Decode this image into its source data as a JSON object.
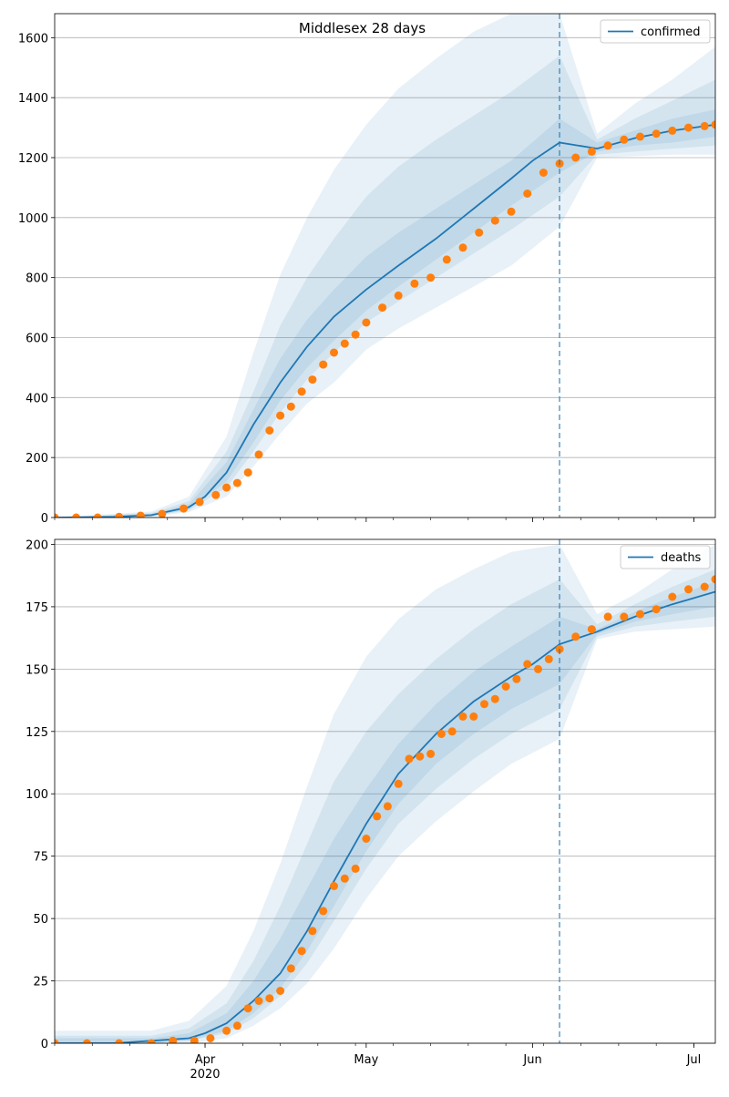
{
  "chart_data": [
    {
      "type": "line",
      "title": "Middlesex 28 days",
      "xlabel": "",
      "ylabel": "",
      "ylim": [
        0,
        1680
      ],
      "yticks": [
        0,
        200,
        400,
        600,
        800,
        1000,
        1200,
        1400,
        1600
      ],
      "xticks": [
        {
          "date": "2020-04-01",
          "label": "Apr"
        },
        {
          "date": "2020-05-01",
          "label": "May"
        },
        {
          "date": "2020-06-01",
          "label": "Jun"
        },
        {
          "date": "2020-07-01",
          "label": "Jul"
        }
      ],
      "xlim": [
        "2020-03-04",
        "2020-07-05"
      ],
      "year_label": "2020",
      "grid": "horizontal",
      "legend": "top-right",
      "legend_label": "confirmed",
      "forecast_start": "2020-06-06",
      "model_line": {
        "x": [
          "2020-03-04",
          "2020-03-15",
          "2020-03-22",
          "2020-03-29",
          "2020-04-01",
          "2020-04-05",
          "2020-04-10",
          "2020-04-15",
          "2020-04-20",
          "2020-04-25",
          "2020-05-01",
          "2020-05-07",
          "2020-05-14",
          "2020-05-21",
          "2020-05-28",
          "2020-06-01",
          "2020-06-06",
          "2020-06-13",
          "2020-06-20",
          "2020-06-27",
          "2020-07-05"
        ],
        "y": [
          0,
          2,
          8,
          35,
          70,
          150,
          310,
          450,
          570,
          670,
          760,
          840,
          930,
          1030,
          1130,
          1190,
          1250,
          1230,
          1265,
          1290,
          1310
        ]
      },
      "bands": [
        {
          "x": [
            "2020-03-04",
            "2020-03-22",
            "2020-03-29",
            "2020-04-05",
            "2020-04-10",
            "2020-04-15",
            "2020-04-20",
            "2020-04-25",
            "2020-05-01",
            "2020-05-07",
            "2020-05-14",
            "2020-05-21",
            "2020-05-28",
            "2020-06-06",
            "2020-06-13",
            "2020-06-20",
            "2020-06-27",
            "2020-07-05"
          ],
          "lower": [
            0,
            3,
            18,
            70,
            170,
            280,
            380,
            450,
            560,
            630,
            700,
            770,
            840,
            970,
            1200,
            1205,
            1210,
            1210
          ],
          "upper": [
            0,
            20,
            70,
            270,
            550,
            810,
            1000,
            1160,
            1310,
            1430,
            1530,
            1620,
            1680,
            1680,
            1280,
            1380,
            1460,
            1570
          ]
        },
        {
          "x": [
            "2020-03-04",
            "2020-03-22",
            "2020-03-29",
            "2020-04-05",
            "2020-04-10",
            "2020-04-15",
            "2020-04-20",
            "2020-04-25",
            "2020-05-01",
            "2020-05-07",
            "2020-05-14",
            "2020-05-21",
            "2020-05-28",
            "2020-06-06",
            "2020-06-13",
            "2020-06-20",
            "2020-06-27",
            "2020-07-05"
          ],
          "lower": [
            0,
            4,
            24,
            100,
            220,
            350,
            460,
            550,
            650,
            720,
            800,
            880,
            960,
            1070,
            1210,
            1220,
            1230,
            1240
          ],
          "upper": [
            0,
            15,
            55,
            220,
            420,
            640,
            800,
            930,
            1070,
            1170,
            1260,
            1340,
            1420,
            1540,
            1260,
            1330,
            1390,
            1460
          ]
        },
        {
          "x": [
            "2020-03-04",
            "2020-03-22",
            "2020-03-29",
            "2020-04-05",
            "2020-04-10",
            "2020-04-15",
            "2020-04-20",
            "2020-04-25",
            "2020-05-01",
            "2020-05-07",
            "2020-05-14",
            "2020-05-21",
            "2020-05-28",
            "2020-06-06",
            "2020-06-13",
            "2020-06-20",
            "2020-06-27",
            "2020-07-05"
          ],
          "lower": [
            0,
            5,
            28,
            120,
            250,
            390,
            500,
            590,
            690,
            770,
            860,
            950,
            1040,
            1150,
            1220,
            1240,
            1250,
            1270
          ],
          "upper": [
            0,
            12,
            45,
            185,
            360,
            530,
            660,
            760,
            870,
            950,
            1030,
            1110,
            1190,
            1330,
            1250,
            1290,
            1330,
            1360
          ]
        }
      ],
      "observed": {
        "x": [
          "2020-03-04",
          "2020-03-08",
          "2020-03-12",
          "2020-03-16",
          "2020-03-20",
          "2020-03-24",
          "2020-03-28",
          "2020-03-31",
          "2020-04-03",
          "2020-04-05",
          "2020-04-07",
          "2020-04-09",
          "2020-04-11",
          "2020-04-13",
          "2020-04-15",
          "2020-04-17",
          "2020-04-19",
          "2020-04-21",
          "2020-04-23",
          "2020-04-25",
          "2020-04-27",
          "2020-04-29",
          "2020-05-01",
          "2020-05-04",
          "2020-05-07",
          "2020-05-10",
          "2020-05-13",
          "2020-05-16",
          "2020-05-19",
          "2020-05-22",
          "2020-05-25",
          "2020-05-28",
          "2020-05-31",
          "2020-06-03",
          "2020-06-06",
          "2020-06-09",
          "2020-06-12",
          "2020-06-15",
          "2020-06-18",
          "2020-06-21",
          "2020-06-24",
          "2020-06-27",
          "2020-06-30",
          "2020-07-03",
          "2020-07-05"
        ],
        "y": [
          0,
          0,
          0,
          2,
          6,
          12,
          30,
          52,
          75,
          100,
          115,
          150,
          210,
          290,
          340,
          370,
          420,
          460,
          510,
          550,
          580,
          610,
          650,
          700,
          740,
          780,
          800,
          860,
          900,
          950,
          990,
          1020,
          1080,
          1150,
          1180,
          1200,
          1220,
          1240,
          1260,
          1270,
          1280,
          1290,
          1300,
          1305,
          1310
        ]
      }
    },
    {
      "type": "line",
      "title": "",
      "xlabel": "",
      "ylabel": "",
      "ylim": [
        0,
        202
      ],
      "yticks": [
        0,
        25,
        50,
        75,
        100,
        125,
        150,
        175,
        200
      ],
      "xticks": [
        {
          "date": "2020-04-01",
          "label": "Apr"
        },
        {
          "date": "2020-05-01",
          "label": "May"
        },
        {
          "date": "2020-06-01",
          "label": "Jun"
        },
        {
          "date": "2020-07-01",
          "label": "Jul"
        }
      ],
      "xlim": [
        "2020-03-04",
        "2020-07-05"
      ],
      "year_label": "2020",
      "grid": "horizontal",
      "legend": "top-right",
      "legend_label": "deaths",
      "forecast_start": "2020-06-06",
      "model_line": {
        "x": [
          "2020-03-04",
          "2020-03-15",
          "2020-03-22",
          "2020-03-29",
          "2020-04-01",
          "2020-04-05",
          "2020-04-10",
          "2020-04-15",
          "2020-04-20",
          "2020-04-25",
          "2020-05-01",
          "2020-05-07",
          "2020-05-14",
          "2020-05-21",
          "2020-05-28",
          "2020-06-01",
          "2020-06-06",
          "2020-06-13",
          "2020-06-20",
          "2020-06-27",
          "2020-07-05"
        ],
        "y": [
          0,
          0,
          1,
          2,
          4,
          8,
          17,
          28,
          45,
          65,
          88,
          108,
          124,
          137,
          147,
          152,
          160,
          165,
          171,
          176,
          181
        ]
      },
      "bands": [
        {
          "x": [
            "2020-03-04",
            "2020-03-22",
            "2020-03-29",
            "2020-04-05",
            "2020-04-10",
            "2020-04-15",
            "2020-04-20",
            "2020-04-25",
            "2020-05-01",
            "2020-05-07",
            "2020-05-14",
            "2020-05-21",
            "2020-05-28",
            "2020-06-06",
            "2020-06-13",
            "2020-06-20",
            "2020-06-27",
            "2020-07-05"
          ],
          "lower": [
            0,
            0,
            0,
            2,
            7,
            14,
            24,
            38,
            58,
            75,
            89,
            101,
            112,
            122,
            162,
            165,
            166,
            167
          ],
          "upper": [
            5,
            5,
            9,
            23,
            45,
            72,
            103,
            132,
            155,
            170,
            182,
            190,
            197,
            200,
            172,
            180,
            190,
            200
          ]
        },
        {
          "x": [
            "2020-03-04",
            "2020-03-22",
            "2020-03-29",
            "2020-04-05",
            "2020-04-10",
            "2020-04-15",
            "2020-04-20",
            "2020-04-25",
            "2020-05-01",
            "2020-05-07",
            "2020-05-14",
            "2020-05-21",
            "2020-05-28",
            "2020-06-06",
            "2020-06-13",
            "2020-06-20",
            "2020-06-27",
            "2020-07-05"
          ],
          "lower": [
            0,
            0,
            1,
            4,
            10,
            19,
            32,
            49,
            70,
            88,
            102,
            114,
            124,
            134,
            163,
            167,
            169,
            171
          ],
          "upper": [
            3,
            3,
            6,
            16,
            33,
            55,
            80,
            105,
            125,
            140,
            154,
            166,
            176,
            186,
            168,
            176,
            183,
            190
          ]
        },
        {
          "x": [
            "2020-03-04",
            "2020-03-22",
            "2020-03-29",
            "2020-04-05",
            "2020-04-10",
            "2020-04-15",
            "2020-04-20",
            "2020-04-25",
            "2020-05-01",
            "2020-05-07",
            "2020-05-14",
            "2020-05-21",
            "2020-05-28",
            "2020-06-06",
            "2020-06-13",
            "2020-06-20",
            "2020-06-27",
            "2020-07-05"
          ],
          "lower": [
            0,
            0,
            1,
            5,
            12,
            22,
            37,
            55,
            77,
            96,
            112,
            124,
            134,
            144,
            164,
            169,
            172,
            175
          ],
          "upper": [
            2,
            2,
            4,
            12,
            25,
            42,
            62,
            82,
            102,
            120,
            136,
            149,
            159,
            171,
            166,
            173,
            179,
            185
          ]
        }
      ],
      "observed": {
        "x": [
          "2020-03-04",
          "2020-03-10",
          "2020-03-16",
          "2020-03-22",
          "2020-03-26",
          "2020-03-30",
          "2020-04-02",
          "2020-04-05",
          "2020-04-07",
          "2020-04-09",
          "2020-04-11",
          "2020-04-13",
          "2020-04-15",
          "2020-04-17",
          "2020-04-19",
          "2020-04-21",
          "2020-04-23",
          "2020-04-25",
          "2020-04-27",
          "2020-04-29",
          "2020-05-01",
          "2020-05-03",
          "2020-05-05",
          "2020-05-07",
          "2020-05-09",
          "2020-05-11",
          "2020-05-13",
          "2020-05-15",
          "2020-05-17",
          "2020-05-19",
          "2020-05-21",
          "2020-05-23",
          "2020-05-25",
          "2020-05-27",
          "2020-05-29",
          "2020-05-31",
          "2020-06-02",
          "2020-06-04",
          "2020-06-06",
          "2020-06-09",
          "2020-06-12",
          "2020-06-15",
          "2020-06-18",
          "2020-06-21",
          "2020-06-24",
          "2020-06-27",
          "2020-06-30",
          "2020-07-03",
          "2020-07-05"
        ],
        "y": [
          0,
          0,
          0,
          0,
          1,
          1,
          2,
          5,
          7,
          14,
          17,
          18,
          21,
          30,
          37,
          45,
          53,
          63,
          66,
          70,
          82,
          91,
          95,
          104,
          114,
          115,
          116,
          124,
          125,
          131,
          131,
          136,
          138,
          143,
          146,
          152,
          150,
          154,
          158,
          163,
          166,
          171,
          171,
          172,
          174,
          179,
          182,
          183,
          186
        ]
      }
    }
  ]
}
